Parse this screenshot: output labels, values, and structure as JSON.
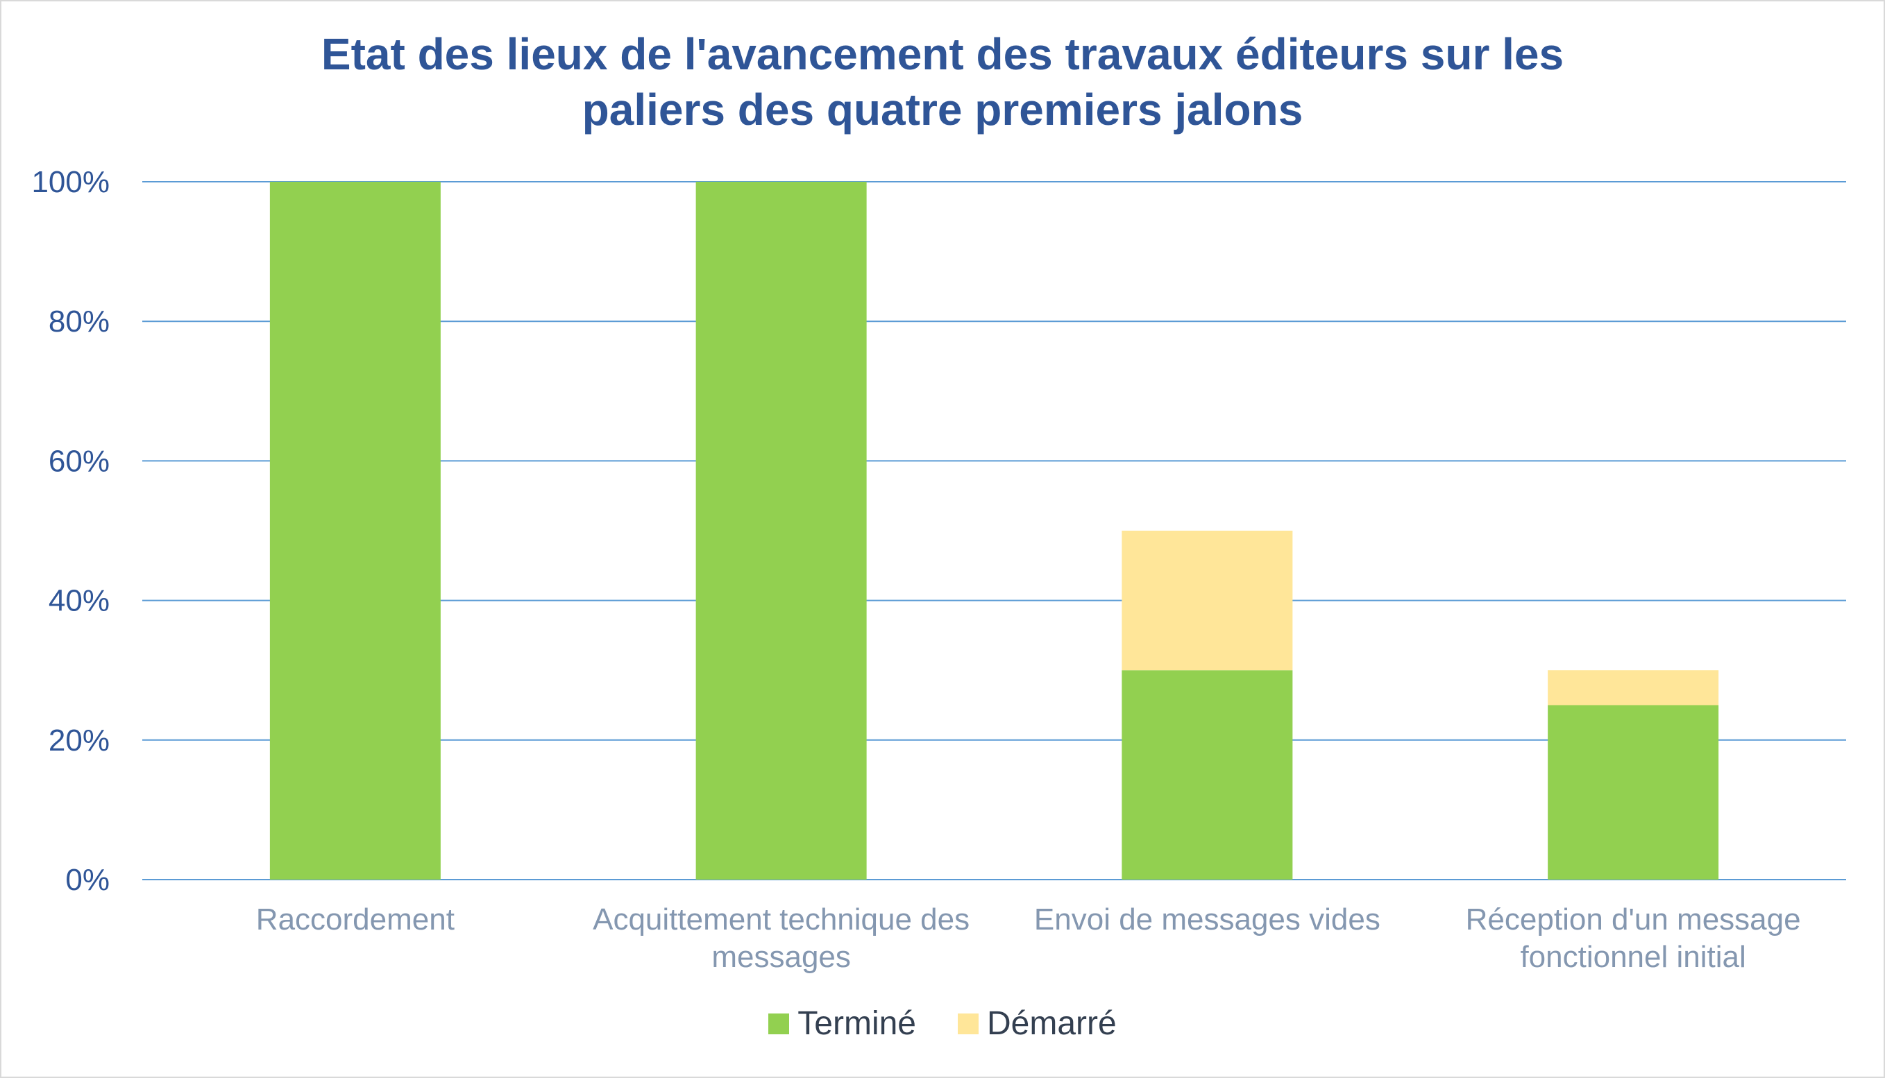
{
  "chart_data": {
    "type": "bar",
    "stacked": true,
    "title_lines": [
      "Etat des lieux de l'avancement des travaux éditeurs sur les",
      "paliers des quatre premiers jalons"
    ],
    "categories": [
      [
        "Raccordement"
      ],
      [
        "Acquittement technique des",
        "messages"
      ],
      [
        "Envoi de messages vides"
      ],
      [
        "Réception d'un message",
        "fonctionnel initial"
      ]
    ],
    "series": [
      {
        "name": "Terminé",
        "values": [
          100,
          100,
          30,
          25
        ],
        "color": "#92d050"
      },
      {
        "name": "Démarré",
        "values": [
          0,
          0,
          20,
          5
        ],
        "color": "#ffe699"
      }
    ],
    "ylim": [
      0,
      100
    ],
    "yticks": [
      "0%",
      "20%",
      "40%",
      "60%",
      "80%",
      "100%"
    ],
    "grid": true,
    "grid_color": "#5b9bd5",
    "title_color": "#2f5597",
    "legend_position": "bottom"
  }
}
